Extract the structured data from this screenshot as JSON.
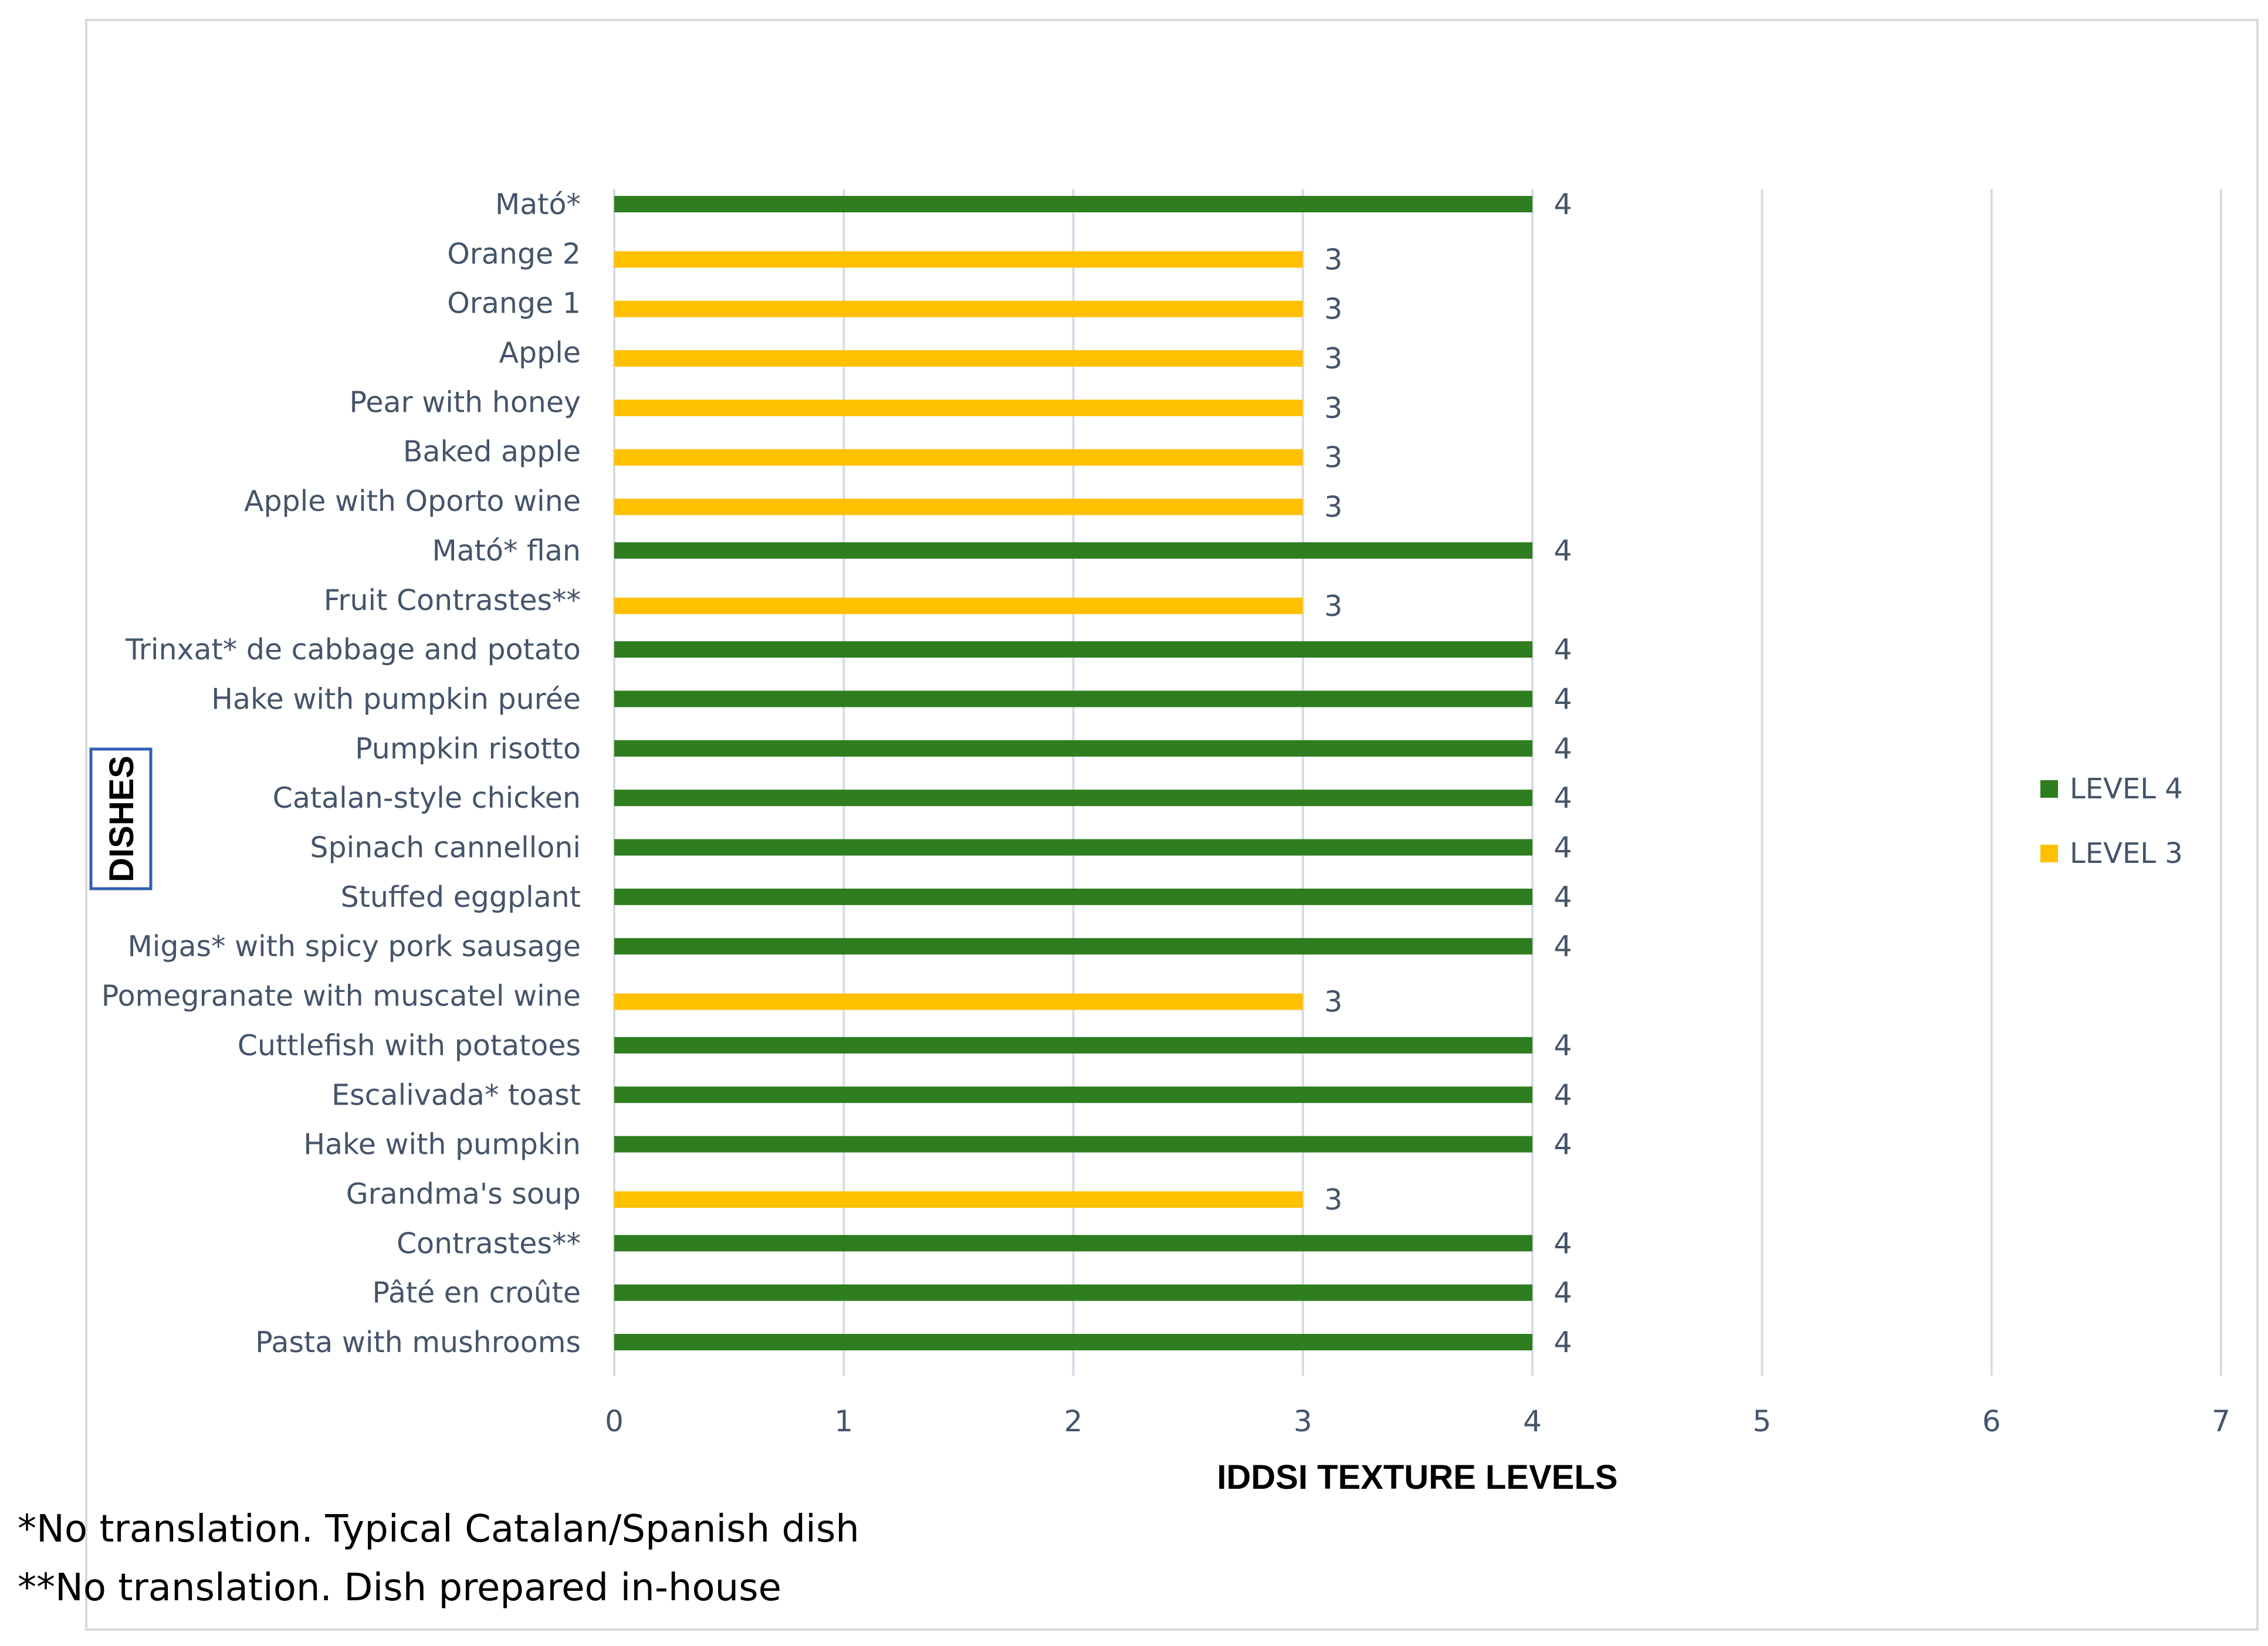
{
  "chart_data": {
    "type": "bar",
    "orientation": "horizontal",
    "categories": [
      "Mató*",
      "Orange 2",
      "Orange 1",
      "Apple",
      "Pear with honey",
      "Baked apple",
      "Apple with Oporto wine",
      "Mató* flan",
      "Fruit Contrastes**",
      "Trinxat* de cabbage and potato",
      "Hake with pumpkin purée",
      "Pumpkin risotto",
      "Catalan-style chicken",
      "Spinach cannelloni",
      "Stuffed eggplant",
      "Migas* with spicy pork sausage",
      "Pomegranate with muscatel wine",
      "Cuttlefish with potatoes",
      "Escalivada* toast",
      "Hake with pumpkin",
      "Grandma's soup",
      "Contrastes**",
      "Pâté en croûte",
      "Pasta with mushrooms"
    ],
    "series": [
      {
        "name": "LEVEL 4",
        "color": "#2e7d1f",
        "values": [
          4,
          null,
          null,
          null,
          null,
          null,
          null,
          4,
          null,
          4,
          4,
          4,
          4,
          4,
          4,
          4,
          null,
          4,
          4,
          4,
          null,
          4,
          4,
          4
        ]
      },
      {
        "name": "LEVEL 3",
        "color": "#ffc000",
        "values": [
          null,
          3,
          3,
          3,
          3,
          3,
          3,
          null,
          3,
          null,
          null,
          null,
          null,
          null,
          null,
          null,
          3,
          null,
          null,
          null,
          3,
          null,
          null,
          null
        ]
      }
    ],
    "xlabel": "IDDSI TEXTURE LEVELS",
    "ylabel": "DISHES",
    "xlim": [
      0,
      7
    ],
    "xticks": [
      "0",
      "1",
      "2",
      "3",
      "4",
      "5",
      "6",
      "7"
    ],
    "grid": "vertical",
    "legend": "right"
  },
  "footnotes": [
    "*No translation. Typical Catalan/Spanish dish",
    "**No translation. Dish prepared in-house"
  ]
}
